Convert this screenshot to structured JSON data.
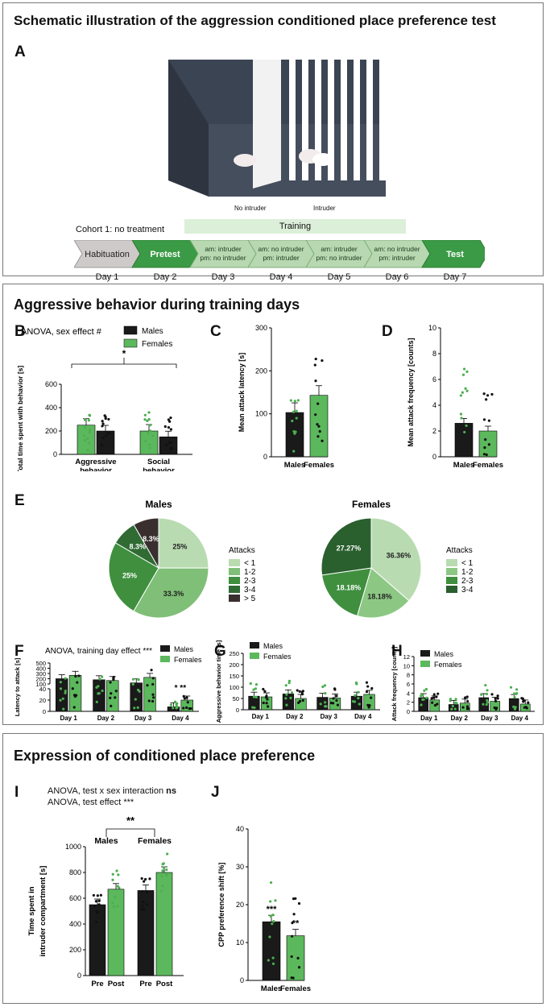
{
  "colors": {
    "male": "#1a1a1a",
    "female": "#5cb85c",
    "female_dot": "#4caf50",
    "dark_green": "#2e7d32",
    "slate": "#3b4452",
    "light_green_band": "#dcefd9"
  },
  "section1": {
    "title": "Schematic illustration of the aggression conditioned place preference test",
    "letter": "A",
    "label_no_intruder": "No intruder",
    "label_intruder": "Intruder",
    "cohort": "Cohort 1: no treatment",
    "training": "Training",
    "steps": [
      {
        "line1": "Habituation",
        "line2": "",
        "day": "Day 1",
        "style": "grey"
      },
      {
        "line1": "Pretest",
        "line2": "",
        "day": "Day 2",
        "style": "dark"
      },
      {
        "line1": "am: intruder",
        "line2": "pm: no intruder",
        "day": "Day 3",
        "style": "light"
      },
      {
        "line1": "am: no intruder",
        "line2": "pm: intruder",
        "day": "Day 4",
        "style": "light"
      },
      {
        "line1": "am: intruder",
        "line2": "pm: no intruder",
        "day": "Day 5",
        "style": "light"
      },
      {
        "line1": "am: no intruder",
        "line2": "pm: intruder",
        "day": "Day 6",
        "style": "light"
      },
      {
        "line1": "Test",
        "line2": "",
        "day": "Day 7",
        "style": "dark"
      }
    ]
  },
  "section2": {
    "title": "Aggressive behavior during training days"
  },
  "section3": {
    "title": "Expression of conditioned place preference"
  },
  "chart_data": [
    {
      "id": "B",
      "type": "bar",
      "title": "ANOVA, sex effect #",
      "ylabel": "Total time spent with behavior [s]",
      "ylim": [
        0,
        600
      ],
      "yticks": [
        0,
        200,
        400,
        600
      ],
      "categories": [
        "Aggressive behavior",
        "Social behavior"
      ],
      "series": [
        {
          "name": "Males",
          "values": [
            200,
            150
          ]
        },
        {
          "name": "Females",
          "values": [
            250,
            200
          ]
        }
      ],
      "order": [
        "Females",
        "Males"
      ],
      "significance": "*"
    },
    {
      "id": "C",
      "type": "bar",
      "title": "",
      "ylabel": "Mean attack latency [s]",
      "ylim": [
        0,
        300
      ],
      "yticks": [
        0,
        100,
        200,
        300
      ],
      "categories": [
        "Males",
        "Females"
      ],
      "values": [
        103,
        143
      ]
    },
    {
      "id": "D",
      "type": "bar",
      "title": "",
      "ylabel": "Mean attack frequency [counts]",
      "ylim": [
        0,
        10
      ],
      "yticks": [
        0,
        2,
        4,
        6,
        8,
        10
      ],
      "categories": [
        "Males",
        "Females"
      ],
      "values": [
        2.6,
        2.0
      ]
    },
    {
      "id": "E1",
      "type": "pie",
      "title": "Males",
      "legend_title": "Attacks",
      "labels": [
        "< 1",
        "1-2",
        "2-3",
        "3-4",
        "> 5"
      ],
      "values": [
        25,
        33.3,
        25,
        8.3,
        8.3
      ],
      "slice_labels": [
        "25%",
        "33.3%",
        "25%",
        "8.3%",
        "8.3%"
      ]
    },
    {
      "id": "E2",
      "type": "pie",
      "title": "Females",
      "legend_title": "Attacks",
      "labels": [
        "< 1",
        "1-2",
        "2-3",
        "3-4"
      ],
      "values": [
        36.36,
        18.18,
        18.18,
        27.27
      ],
      "slice_labels": [
        "36.36%",
        "18.18%",
        "18.18%",
        "27.27%"
      ]
    },
    {
      "id": "F",
      "type": "bar",
      "title": "ANOVA, training day effect ***",
      "ylabel": "Latency to attack [s]",
      "yticks": [
        "0",
        "20",
        "40",
        "100",
        "200",
        "300",
        "400",
        "500"
      ],
      "categories": [
        "Day 1",
        "Day 2",
        "Day 3",
        "Day 4"
      ],
      "series": [
        {
          "name": "Males",
          "values": [
            200,
            180,
            120,
            8
          ]
        },
        {
          "name": "Females",
          "values": [
            265,
            165,
            225,
            20
          ]
        }
      ],
      "significance": [
        "",
        "",
        "",
        "* **"
      ]
    },
    {
      "id": "G",
      "type": "bar",
      "title": "",
      "ylabel": "Aggressive behavior time [s]",
      "ylim": [
        0,
        250
      ],
      "yticks": [
        0,
        50,
        100,
        150,
        200,
        250
      ],
      "categories": [
        "Day 1",
        "Day 2",
        "Day 3",
        "Day 4"
      ],
      "series": [
        {
          "name": "Males",
          "values": [
            60,
            70,
            55,
            60
          ]
        },
        {
          "name": "Females",
          "values": [
            57,
            50,
            52,
            68
          ]
        }
      ]
    },
    {
      "id": "H",
      "type": "bar",
      "title": "",
      "ylabel": "Attack frequency [counts]",
      "ylim": [
        0,
        12
      ],
      "yticks": [
        0,
        2,
        4,
        6,
        8,
        10,
        12
      ],
      "categories": [
        "Day 1",
        "Day 2",
        "Day 3",
        "Day 4"
      ],
      "series": [
        {
          "name": "Males",
          "values": [
            3.0,
            1.5,
            3.0,
            2.8
          ]
        },
        {
          "name": "Females",
          "values": [
            2.5,
            1.8,
            2.2,
            1.6
          ]
        }
      ]
    },
    {
      "id": "I",
      "type": "bar",
      "title": "ANOVA, test x sex interaction ns",
      "subtitle": "ANOVA, test effect ***",
      "ylabel": "Time spent in intruder compartment [s]",
      "ylim": [
        0,
        1000
      ],
      "yticks": [
        0,
        200,
        400,
        600,
        800,
        1000
      ],
      "groups": [
        "Males",
        "Females"
      ],
      "categories": [
        "Pre",
        "Post",
        "Pre",
        "Post"
      ],
      "values": [
        550,
        670,
        660,
        800
      ],
      "significance": "**"
    },
    {
      "id": "J",
      "type": "bar",
      "title": "",
      "ylabel": "CPP preference shift [%]",
      "ylim": [
        0,
        40
      ],
      "yticks": [
        0,
        10,
        20,
        30,
        40
      ],
      "categories": [
        "Males",
        "Females"
      ],
      "values": [
        15.5,
        11.8
      ],
      "significance": [
        "***",
        "**"
      ]
    }
  ],
  "text": {
    "B_title_a": "ANOVA, sex effect #",
    "F_title": "ANOVA, training day effect ***",
    "I_title_pre": "ANOVA, test x sex interaction ",
    "I_title_bold": "ns",
    "I_subtitle": "ANOVA, test effect ***"
  }
}
